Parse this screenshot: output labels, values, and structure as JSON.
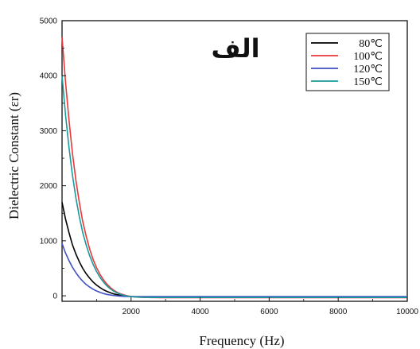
{
  "chart_data": {
    "type": "line",
    "panel_label": "الف",
    "xlabel": "Frequency (Hz)",
    "ylabel": "Dielectric Constant (εr)",
    "xlim": [
      0,
      10000
    ],
    "ylim": [
      -100,
      5000
    ],
    "x_ticks": [
      2000,
      4000,
      6000,
      8000,
      10000
    ],
    "y_ticks": [
      0,
      1000,
      2000,
      3000,
      4000,
      5000
    ],
    "legend_position": "top-right",
    "series": [
      {
        "name": "80℃",
        "color": "#000000",
        "x": [
          0,
          100,
          200,
          300,
          400,
          500,
          600,
          700,
          800,
          900,
          1000,
          1100,
          1200,
          1300,
          1400,
          1500,
          1600,
          1700,
          1800,
          1900,
          2000,
          2100,
          2200,
          2300,
          2400,
          2500,
          2600,
          2700,
          2800,
          2900,
          3000,
          3500,
          4000,
          5000,
          6000,
          7000,
          8000,
          9000,
          10000
        ],
        "values": [
          1700,
          1400,
          1150,
          930,
          760,
          620,
          500,
          400,
          320,
          250,
          195,
          150,
          110,
          80,
          55,
          35,
          20,
          8,
          0,
          -8,
          -15,
          -18,
          -20,
          -22,
          -23,
          -24,
          -24,
          -25,
          -25,
          -25,
          -25,
          -25,
          -25,
          -25,
          -25,
          -25,
          -25,
          -25,
          -25
        ]
      },
      {
        "name": "100℃",
        "color": "#e8383b",
        "x": [
          0,
          100,
          200,
          300,
          400,
          500,
          600,
          700,
          800,
          900,
          1000,
          1100,
          1200,
          1300,
          1400,
          1500,
          1600,
          1700,
          1800,
          1900,
          2000,
          2100,
          2200,
          2300,
          2400,
          2500,
          2600,
          2700,
          2800,
          2900,
          3000,
          3500,
          4000,
          5000,
          6000,
          7000,
          8000,
          9000,
          10000
        ],
        "values": [
          4700,
          3900,
          3200,
          2600,
          2100,
          1700,
          1350,
          1080,
          850,
          660,
          510,
          390,
          290,
          210,
          150,
          100,
          62,
          35,
          15,
          0,
          -12,
          -20,
          -25,
          -28,
          -30,
          -31,
          -32,
          -32,
          -33,
          -33,
          -33,
          -33,
          -33,
          -33,
          -33,
          -33,
          -33,
          -33,
          -33
        ]
      },
      {
        "name": "120℃",
        "color": "#3f51c4",
        "x": [
          0,
          100,
          200,
          300,
          400,
          500,
          600,
          700,
          800,
          900,
          1000,
          1100,
          1200,
          1300,
          1400,
          1500,
          1600,
          1700,
          1800,
          1900,
          2000,
          2100,
          2200,
          2300,
          2400,
          2500,
          2600,
          2700,
          2800,
          2900,
          3000,
          3500,
          4000,
          5000,
          6000,
          7000,
          8000,
          9000,
          10000
        ],
        "values": [
          950,
          780,
          640,
          520,
          420,
          335,
          265,
          205,
          158,
          120,
          88,
          62,
          42,
          26,
          14,
          5,
          -2,
          -7,
          -10,
          -12,
          -14,
          -15,
          -15,
          -15,
          -15,
          -15,
          -15,
          -15,
          -15,
          -15,
          -15,
          -15,
          -15,
          -15,
          -15,
          -15,
          -15,
          -15,
          -15
        ]
      },
      {
        "name": "150℃",
        "color": "#1a9a9a",
        "x": [
          0,
          100,
          200,
          300,
          400,
          500,
          600,
          700,
          800,
          900,
          1000,
          1100,
          1200,
          1300,
          1400,
          1500,
          1600,
          1700,
          1800,
          1900,
          2000,
          2100,
          2200,
          2300,
          2400,
          2500,
          2600,
          2700,
          2800,
          2900,
          3000,
          3500,
          4000,
          5000,
          6000,
          7000,
          8000,
          9000,
          10000
        ],
        "values": [
          4000,
          3300,
          2700,
          2200,
          1780,
          1440,
          1150,
          920,
          730,
          570,
          440,
          335,
          250,
          180,
          125,
          82,
          50,
          26,
          8,
          -5,
          -14,
          -20,
          -24,
          -27,
          -28,
          -29,
          -30,
          -30,
          -30,
          -30,
          -30,
          -30,
          -30,
          -30,
          -30,
          -30,
          -30,
          -30,
          -30
        ]
      }
    ]
  }
}
